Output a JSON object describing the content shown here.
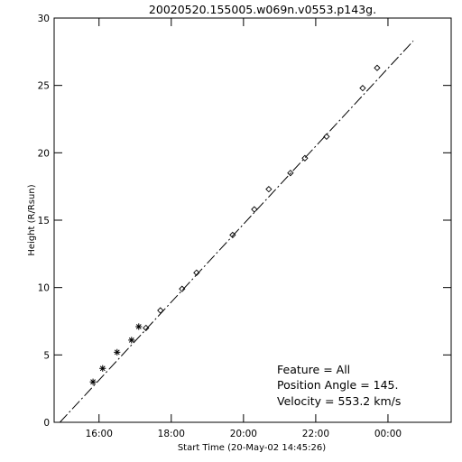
{
  "chart_data": {
    "type": "scatter",
    "title": "20020520.155005.w069n.v0553.p143g.",
    "xlabel": "Start Time (20-May-02 14:45:26)",
    "ylabel": "Height  (R/Rsun)",
    "xlim": [
      "14:45:26",
      "01:45"
    ],
    "ylim": [
      0,
      30
    ],
    "x_ticks": [
      {
        "t": "16:00",
        "label": "16:00"
      },
      {
        "t": "18:00",
        "label": "18:00"
      },
      {
        "t": "20:00",
        "label": "20:00"
      },
      {
        "t": "22:00",
        "label": "22:00"
      },
      {
        "t": "00:00",
        "label": "00:00"
      }
    ],
    "y_ticks": [
      0,
      5,
      10,
      15,
      20,
      25,
      30
    ],
    "grid": false,
    "series": [
      {
        "marker": "asterisk",
        "points": [
          {
            "t": "15:50",
            "y": 3.0
          },
          {
            "t": "16:06",
            "y": 4.0
          },
          {
            "t": "16:30",
            "y": 5.2
          },
          {
            "t": "16:54",
            "y": 6.1
          },
          {
            "t": "17:06",
            "y": 7.1
          }
        ]
      },
      {
        "marker": "diamond",
        "points": [
          {
            "t": "17:18",
            "y": 7.0
          },
          {
            "t": "17:42",
            "y": 8.3
          },
          {
            "t": "18:18",
            "y": 9.9
          },
          {
            "t": "18:42",
            "y": 11.1
          },
          {
            "t": "19:42",
            "y": 13.9
          },
          {
            "t": "20:18",
            "y": 15.8
          },
          {
            "t": "20:42",
            "y": 17.3
          },
          {
            "t": "21:18",
            "y": 18.5
          },
          {
            "t": "21:42",
            "y": 19.6
          },
          {
            "t": "22:18",
            "y": 21.2
          },
          {
            "t": "23:18",
            "y": 24.8
          },
          {
            "t": "23:42",
            "y": 26.3
          }
        ]
      }
    ],
    "fit_line": {
      "start": {
        "t": "14:55",
        "y": 0
      },
      "end": {
        "t": "00:42",
        "y": 28.3
      }
    },
    "annotation": {
      "feature": "Feature = All",
      "position_angle": "Position Angle =   145.",
      "velocity": "Velocity =  553.2 km/s"
    }
  }
}
